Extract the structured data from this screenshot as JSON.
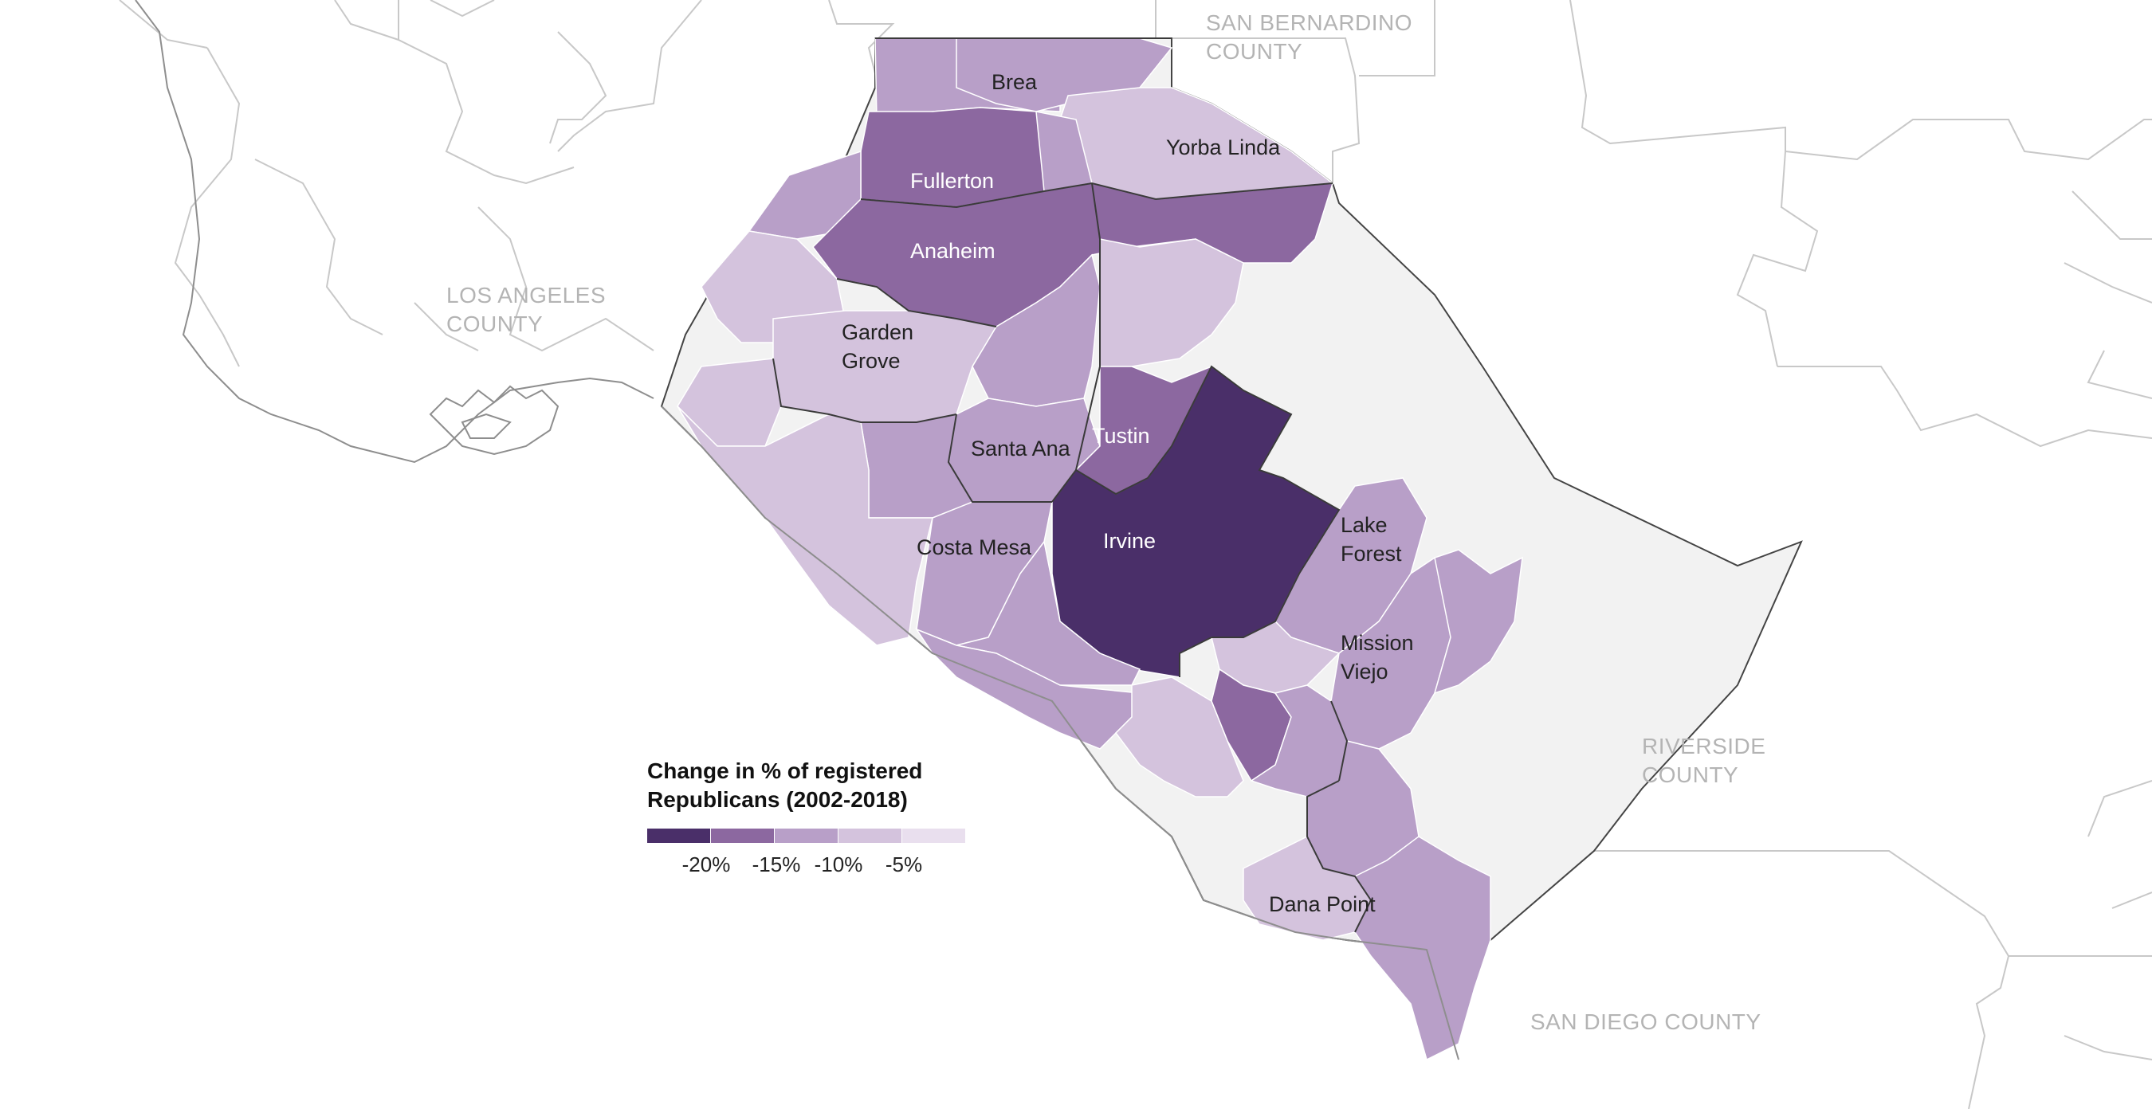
{
  "colors": {
    "bin1": "#4a2f69",
    "bin2": "#8c68a0",
    "bin3": "#b89fc8",
    "bin4": "#d4c3dd",
    "bin5": "#e9dfee",
    "unincorporated": "#f2f2f2",
    "background": "#ffffff"
  },
  "county_labels": {
    "san_bernardino_line1": "SAN BERNARDINO",
    "san_bernardino_line2": "COUNTY",
    "los_angeles_line1": "LOS ANGELES",
    "los_angeles_line2": "COUNTY",
    "riverside_line1": "RIVERSIDE",
    "riverside_line2": "COUNTY",
    "san_diego": "SAN DIEGO COUNTY"
  },
  "city_labels": {
    "brea": "Brea",
    "yorba_linda": "Yorba Linda",
    "fullerton": "Fullerton",
    "anaheim": "Anaheim",
    "garden_grove_line1": "Garden",
    "garden_grove_line2": "Grove",
    "santa_ana": "Santa Ana",
    "tustin": "Tustin",
    "irvine": "Irvine",
    "costa_mesa": "Costa Mesa",
    "lake_forest_line1": "Lake",
    "lake_forest_line2": "Forest",
    "mission_viejo_line1": "Mission",
    "mission_viejo_line2": "Viejo",
    "dana_point": "Dana Point"
  },
  "legend": {
    "title": "Change in % of registered Republicans (2002-2018)",
    "ticks": [
      "-20%",
      "-15%",
      "-10%",
      "-5%"
    ]
  }
}
